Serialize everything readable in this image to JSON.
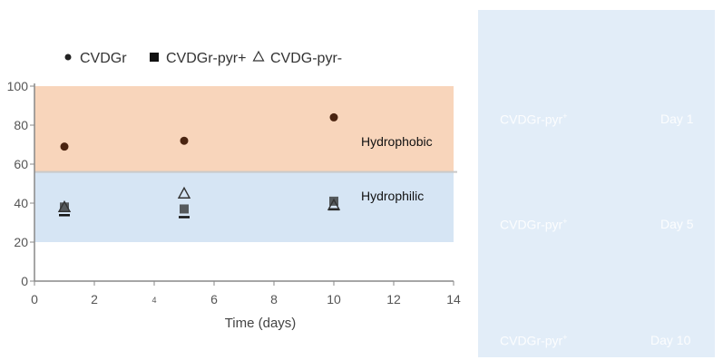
{
  "chart_data": {
    "type": "scatter",
    "xlabel": "Time (days)",
    "x_ticks": [
      "0",
      "2",
      "4",
      "6",
      "8",
      "10",
      "12",
      "14"
    ],
    "y_ticks": [
      "0",
      "20",
      "40",
      "60",
      "80",
      "100"
    ],
    "xlim": [
      0,
      14
    ],
    "ylim": [
      0,
      100
    ],
    "grid": false,
    "legend_position": "top",
    "bands": [
      {
        "label": "Hydrophobic",
        "y_range": [
          56,
          100
        ],
        "color": "#f8d5bb"
      },
      {
        "label": "Hydrophilic",
        "y_range": [
          20,
          56
        ],
        "color": "#d6e5f4"
      }
    ],
    "series": [
      {
        "name": "CVDGr",
        "marker": "circle",
        "color": "#4a2410",
        "points": [
          {
            "x": 1,
            "y": 69
          },
          {
            "x": 5,
            "y": 72
          },
          {
            "x": 10,
            "y": 84
          }
        ]
      },
      {
        "name": "CVDGr-pyr+",
        "marker": "square",
        "color": "#2a2a2a",
        "points": [
          {
            "x": 1,
            "y": 38
          },
          {
            "x": 5,
            "y": 37
          },
          {
            "x": 10,
            "y": 41
          }
        ]
      },
      {
        "name": "CVDG-pyr-",
        "marker": "triangle",
        "color": "#333333",
        "points": [
          {
            "x": 1,
            "y": 38
          },
          {
            "x": 5,
            "y": 45
          },
          {
            "x": 10,
            "y": 39
          }
        ]
      }
    ]
  },
  "panel": {
    "rows": [
      {
        "sample": "CVDGr-pyr",
        "superscript": "+",
        "day": "Day 1"
      },
      {
        "sample": "CVDGr-pyr",
        "superscript": "+",
        "day": "Day 5"
      },
      {
        "sample": "CVDGr-pyr",
        "superscript": "+",
        "day": "Day 10"
      }
    ]
  }
}
